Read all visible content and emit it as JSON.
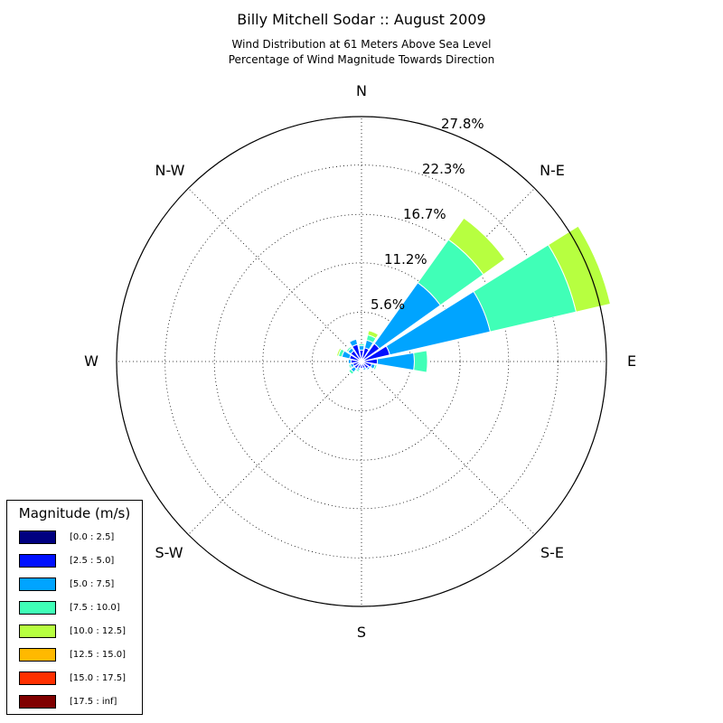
{
  "title": "Billy Mitchell Sodar :: August 2009",
  "subtitle_line1": "Wind Distribution at 61 Meters Above Sea Level",
  "subtitle_line2": "Percentage of Wind Magnitude Towards Direction",
  "directions": {
    "n": "N",
    "ne": "N-E",
    "e": "E",
    "se": "S-E",
    "s": "S",
    "sw": "S-W",
    "w": "W",
    "nw": "N-W"
  },
  "rings": [
    "5.6%",
    "11.2%",
    "16.7%",
    "22.3%",
    "27.8%"
  ],
  "legend": {
    "title": "Magnitude (m/s)",
    "items": [
      {
        "label": "[0.0 : 2.5]",
        "color": "#000080"
      },
      {
        "label": "[2.5 : 5.0]",
        "color": "#0010ff"
      },
      {
        "label": "[5.0 : 7.5]",
        "color": "#00a4ff"
      },
      {
        "label": "[7.5 : 10.0]",
        "color": "#40ffb7"
      },
      {
        "label": "[10.0 : 12.5]",
        "color": "#b7ff40"
      },
      {
        "label": "[12.5 : 15.0]",
        "color": "#ffb900"
      },
      {
        "label": "[15.0 : 17.5]",
        "color": "#ff3000"
      },
      {
        "label": "[17.5 : inf]",
        "color": "#800000"
      }
    ]
  },
  "chart_data": {
    "type": "windrose",
    "r_max_percent": 27.8,
    "r_ticks_percent": [
      5.6,
      11.2,
      16.7,
      22.3,
      27.8
    ],
    "direction_labels": [
      "N",
      "N-E",
      "E",
      "S-E",
      "S",
      "S-W",
      "W",
      "N-W"
    ],
    "sector_directions_deg": [
      0,
      22.5,
      45,
      67.5,
      90,
      112.5,
      135,
      157.5,
      180,
      202.5,
      225,
      247.5,
      270,
      292.5,
      315,
      337.5
    ],
    "bins": [
      "[0.0 : 2.5]",
      "[2.5 : 5.0]",
      "[5.0 : 7.5]",
      "[7.5 : 10.0]",
      "[10.0 : 12.5]",
      "[12.5 : 15.0]",
      "[15.0 : 17.5]",
      "[17.5 : inf]"
    ],
    "cumulative_percent": [
      [
        0.3,
        1.3,
        1.8,
        2.0,
        2.0,
        2.0,
        2.0,
        2.0
      ],
      [
        0.3,
        1.6,
        2.5,
        3.1,
        3.6,
        3.6,
        3.6,
        3.6
      ],
      [
        0.3,
        2.5,
        11.0,
        17.0,
        20.0,
        20.0,
        20.0,
        20.0
      ],
      [
        0.3,
        3.3,
        15.0,
        25.0,
        29.0,
        29.0,
        29.0,
        29.0
      ],
      [
        0.3,
        1.8,
        6.0,
        7.5,
        7.5,
        7.5,
        7.5,
        7.5
      ],
      [
        0.3,
        1.2,
        1.6,
        1.8,
        1.8,
        1.8,
        1.8,
        1.8
      ],
      [
        0.3,
        1.0,
        1.2,
        1.3,
        1.3,
        1.3,
        1.3,
        1.3
      ],
      [
        0.3,
        0.8,
        1.0,
        1.0,
        1.0,
        1.0,
        1.0,
        1.0
      ],
      [
        0.3,
        0.8,
        0.9,
        1.0,
        1.0,
        1.0,
        1.0,
        1.0
      ],
      [
        0.3,
        0.8,
        1.0,
        1.2,
        1.2,
        1.2,
        1.2,
        1.2
      ],
      [
        0.3,
        1.0,
        1.5,
        1.8,
        1.8,
        1.8,
        1.8,
        1.8
      ],
      [
        0.3,
        1.0,
        1.3,
        1.5,
        1.5,
        1.5,
        1.5,
        1.5
      ],
      [
        0.3,
        1.2,
        1.5,
        1.5,
        1.5,
        1.5,
        1.5,
        1.5
      ],
      [
        0.3,
        1.4,
        2.3,
        2.7,
        2.9,
        2.9,
        2.9,
        2.9
      ],
      [
        0.3,
        1.5,
        1.9,
        2.1,
        2.1,
        2.1,
        2.1,
        2.1
      ],
      [
        0.3,
        2.0,
        2.6,
        2.6,
        2.6,
        2.6,
        2.6,
        2.6
      ]
    ],
    "grid": true,
    "legend_position": "bottom-left"
  }
}
